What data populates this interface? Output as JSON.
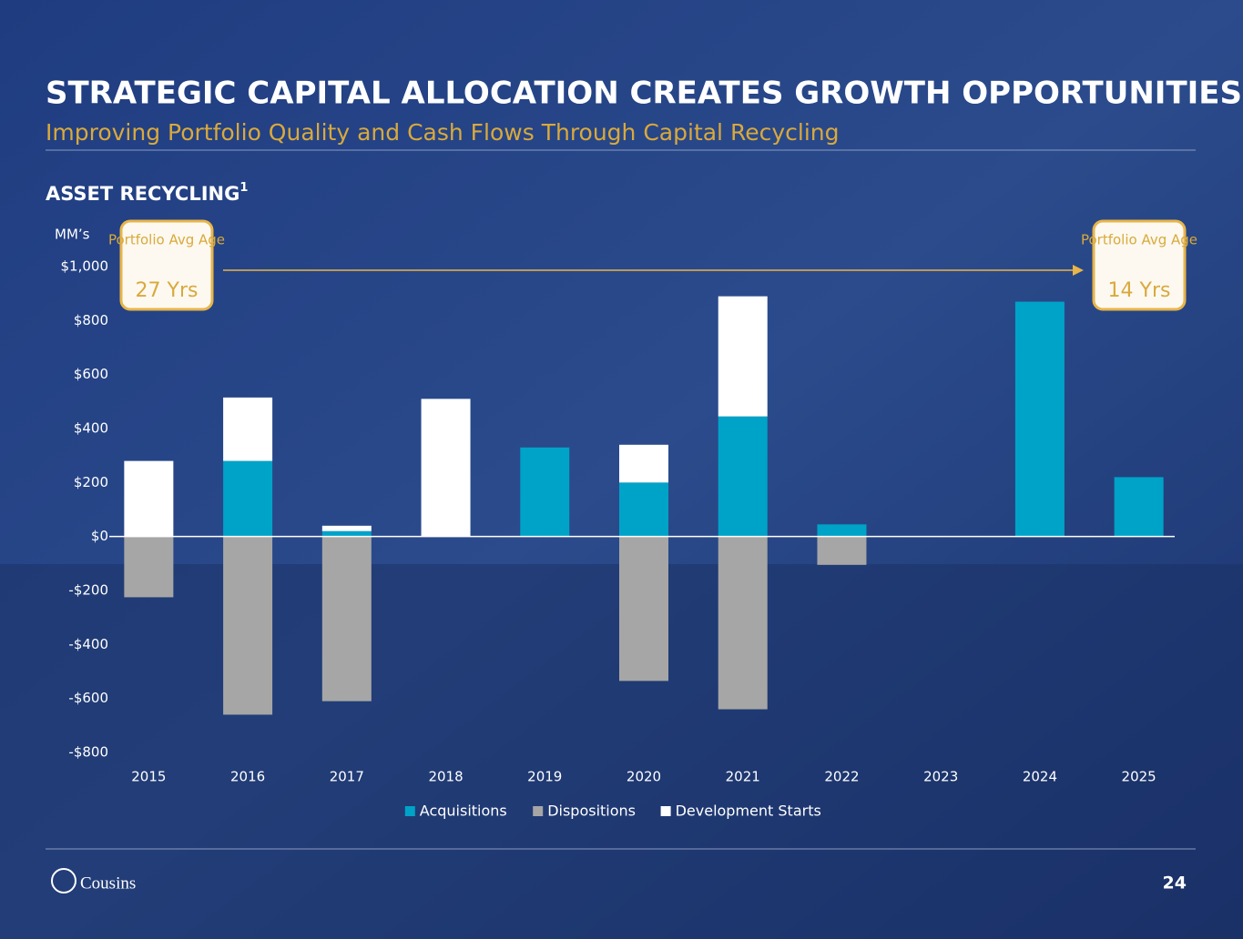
{
  "header": {
    "title": "STRATEGIC CAPITAL ALLOCATION CREATES GROWTH OPPORTUNITIES",
    "subtitle": "Improving Portfolio Quality and Cash Flows Through Capital Recycling"
  },
  "chart_data": {
    "type": "bar",
    "stacked": true,
    "title": "ASSET RECYCLING",
    "title_note": "1",
    "ylabel": "MM’s",
    "categories": [
      "2015",
      "2016",
      "2017",
      "2018",
      "2019",
      "2020",
      "2021",
      "2022",
      "2023",
      "2024",
      "2025"
    ],
    "series": [
      {
        "name": "Acquisitions",
        "color": "#00a3c8",
        "values": [
          0,
          280,
          20,
          0,
          330,
          200,
          445,
          45,
          0,
          870,
          220
        ]
      },
      {
        "name": "Dispositions",
        "color": "#a6a6a6",
        "values": [
          -225,
          -660,
          -610,
          0,
          0,
          -535,
          -640,
          -105,
          0,
          0,
          0
        ]
      },
      {
        "name": "Development Starts",
        "color": "#ffffff",
        "values": [
          280,
          235,
          20,
          510,
          0,
          140,
          445,
          0,
          0,
          0,
          0
        ]
      }
    ],
    "ylim": [
      -800,
      1000
    ],
    "yticks": [
      {
        "value": -800,
        "label": "-$800"
      },
      {
        "value": -600,
        "label": "-$600"
      },
      {
        "value": -400,
        "label": "-$400"
      },
      {
        "value": -200,
        "label": "-$200"
      },
      {
        "value": 0,
        "label": "$0"
      },
      {
        "value": 200,
        "label": "$200"
      },
      {
        "value": 400,
        "label": "$400"
      },
      {
        "value": 600,
        "label": "$600"
      },
      {
        "value": 800,
        "label": "$800"
      },
      {
        "value": 1000,
        "label": "$1,000"
      }
    ],
    "legend": "bottom",
    "annotations": [
      {
        "text": "Portfolio Avg Age",
        "value": "27 Yrs"
      },
      {
        "text": "Portfolio Avg Age",
        "value": "14 Yrs"
      }
    ]
  },
  "footer": {
    "logo": "Cousins",
    "page": "24"
  }
}
